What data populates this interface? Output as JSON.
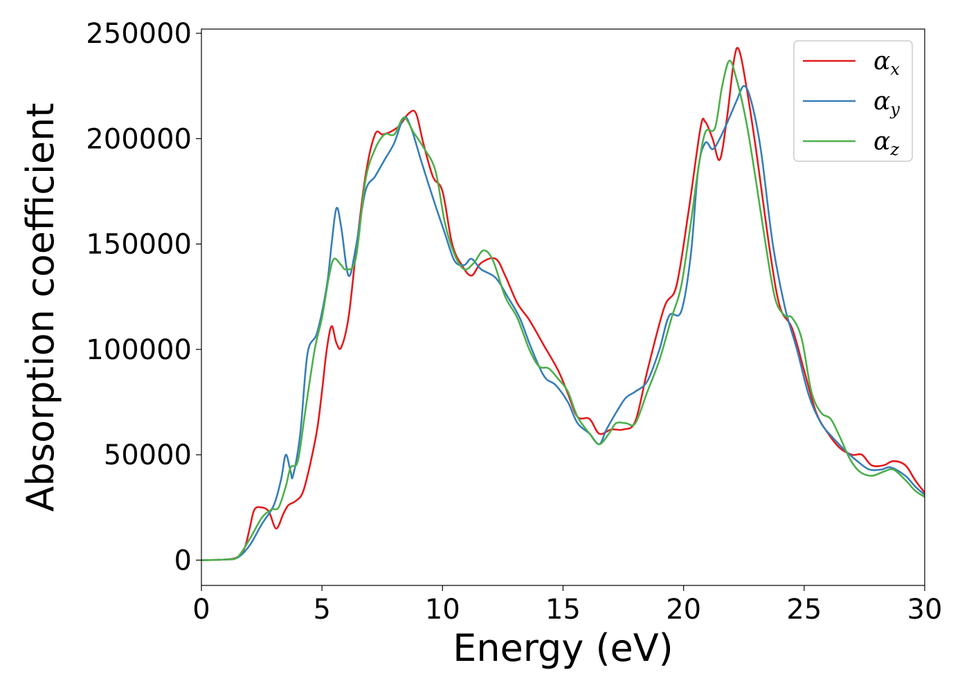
{
  "chart_data": {
    "type": "line",
    "title": "",
    "xlabel": "Energy (eV)",
    "ylabel": "Absorption coefficient",
    "xlim": [
      0,
      30
    ],
    "ylim": [
      -12000,
      252000
    ],
    "xticks": [
      0,
      5,
      10,
      15,
      20,
      25,
      30
    ],
    "yticks": [
      0,
      50000,
      100000,
      150000,
      200000,
      250000
    ],
    "grid": false,
    "legend_position": "top-right",
    "series": [
      {
        "name": "x",
        "legend_symbol": "α",
        "legend_subscript": "x",
        "color": "#e41a1c",
        "points": [
          [
            0,
            0
          ],
          [
            1,
            300
          ],
          [
            1.5,
            1500
          ],
          [
            1.8,
            6000
          ],
          [
            2,
            15000
          ],
          [
            2.2,
            24000
          ],
          [
            2.5,
            25000
          ],
          [
            2.8,
            23000
          ],
          [
            3.1,
            15000
          ],
          [
            3.4,
            22000
          ],
          [
            3.6,
            26000
          ],
          [
            3.9,
            28000
          ],
          [
            4.2,
            32000
          ],
          [
            4.5,
            45000
          ],
          [
            4.8,
            62000
          ],
          [
            5.0,
            80000
          ],
          [
            5.2,
            100000
          ],
          [
            5.4,
            111000
          ],
          [
            5.6,
            103000
          ],
          [
            5.8,
            101000
          ],
          [
            6.1,
            115000
          ],
          [
            6.4,
            145000
          ],
          [
            6.8,
            182000
          ],
          [
            7.2,
            202000
          ],
          [
            7.5,
            202000
          ],
          [
            7.8,
            203000
          ],
          [
            8.2,
            206000
          ],
          [
            8.6,
            212000
          ],
          [
            8.9,
            212000
          ],
          [
            9.2,
            198000
          ],
          [
            9.6,
            182000
          ],
          [
            10,
            175000
          ],
          [
            10.4,
            150000
          ],
          [
            10.8,
            140000
          ],
          [
            11.2,
            135000
          ],
          [
            11.6,
            141000
          ],
          [
            12.2,
            143000
          ],
          [
            12.6,
            135000
          ],
          [
            13.1,
            122000
          ],
          [
            13.6,
            114000
          ],
          [
            14.2,
            102000
          ],
          [
            14.8,
            90000
          ],
          [
            15.2,
            79000
          ],
          [
            15.6,
            68000
          ],
          [
            16.1,
            67000
          ],
          [
            16.5,
            60000
          ],
          [
            17,
            62000
          ],
          [
            17.5,
            62000
          ],
          [
            18,
            66000
          ],
          [
            18.5,
            90000
          ],
          [
            19.2,
            120000
          ],
          [
            19.7,
            130000
          ],
          [
            20.2,
            165000
          ],
          [
            20.7,
            205000
          ],
          [
            20.9,
            208000
          ],
          [
            21.2,
            200000
          ],
          [
            21.5,
            190000
          ],
          [
            21.8,
            210000
          ],
          [
            22.1,
            238000
          ],
          [
            22.3,
            242000
          ],
          [
            22.6,
            225000
          ],
          [
            23,
            195000
          ],
          [
            23.6,
            145000
          ],
          [
            24,
            120000
          ],
          [
            24.5,
            110000
          ],
          [
            25,
            90000
          ],
          [
            25.5,
            70000
          ],
          [
            26,
            60000
          ],
          [
            26.5,
            53000
          ],
          [
            27,
            50000
          ],
          [
            27.4,
            50000
          ],
          [
            27.8,
            45000
          ],
          [
            28.3,
            45000
          ],
          [
            28.7,
            47000
          ],
          [
            29.2,
            45000
          ],
          [
            29.6,
            38000
          ],
          [
            30,
            32000
          ]
        ]
      },
      {
        "name": "y",
        "legend_symbol": "α",
        "legend_subscript": "y",
        "color": "#377eb8",
        "points": [
          [
            0,
            0
          ],
          [
            1,
            300
          ],
          [
            1.5,
            1200
          ],
          [
            2,
            7000
          ],
          [
            2.5,
            17000
          ],
          [
            3,
            26000
          ],
          [
            3.3,
            38000
          ],
          [
            3.5,
            50000
          ],
          [
            3.7,
            42000
          ],
          [
            3.8,
            40000
          ],
          [
            4.1,
            60000
          ],
          [
            4.4,
            98000
          ],
          [
            4.8,
            108000
          ],
          [
            5.2,
            130000
          ],
          [
            5.4,
            150000
          ],
          [
            5.6,
            167000
          ],
          [
            5.8,
            158000
          ],
          [
            6.1,
            135000
          ],
          [
            6.4,
            148000
          ],
          [
            6.8,
            175000
          ],
          [
            7.2,
            182000
          ],
          [
            7.6,
            190000
          ],
          [
            8.0,
            198000
          ],
          [
            8.4,
            210000
          ],
          [
            8.7,
            205000
          ],
          [
            9.1,
            190000
          ],
          [
            9.6,
            172000
          ],
          [
            10.1,
            155000
          ],
          [
            10.5,
            142000
          ],
          [
            10.9,
            140000
          ],
          [
            11.2,
            143000
          ],
          [
            11.6,
            138000
          ],
          [
            12.2,
            134000
          ],
          [
            12.7,
            125000
          ],
          [
            13.2,
            115000
          ],
          [
            13.6,
            103000
          ],
          [
            14.0,
            92000
          ],
          [
            14.3,
            86000
          ],
          [
            14.7,
            83000
          ],
          [
            15.2,
            75000
          ],
          [
            15.6,
            65000
          ],
          [
            16.1,
            60000
          ],
          [
            16.5,
            55000
          ],
          [
            16.8,
            62000
          ],
          [
            17.2,
            70000
          ],
          [
            17.6,
            77000
          ],
          [
            18.0,
            80000
          ],
          [
            18.5,
            85000
          ],
          [
            19.0,
            100000
          ],
          [
            19.4,
            116000
          ],
          [
            19.9,
            118000
          ],
          [
            20.3,
            145000
          ],
          [
            20.6,
            185000
          ],
          [
            20.9,
            198000
          ],
          [
            21.2,
            195000
          ],
          [
            21.5,
            200000
          ],
          [
            21.9,
            210000
          ],
          [
            22.2,
            218000
          ],
          [
            22.5,
            225000
          ],
          [
            22.8,
            218000
          ],
          [
            23.2,
            195000
          ],
          [
            23.7,
            150000
          ],
          [
            24.2,
            120000
          ],
          [
            24.7,
            100000
          ],
          [
            25.2,
            78000
          ],
          [
            25.7,
            65000
          ],
          [
            26.2,
            58000
          ],
          [
            26.7,
            52000
          ],
          [
            27.2,
            47000
          ],
          [
            27.7,
            43000
          ],
          [
            28.2,
            43000
          ],
          [
            28.6,
            44000
          ],
          [
            29.2,
            40000
          ],
          [
            29.6,
            35000
          ],
          [
            30,
            31000
          ]
        ]
      },
      {
        "name": "z",
        "legend_symbol": "α",
        "legend_subscript": "z",
        "color": "#4daf4a",
        "points": [
          [
            0,
            0
          ],
          [
            1,
            300
          ],
          [
            1.5,
            1500
          ],
          [
            2,
            10000
          ],
          [
            2.5,
            20000
          ],
          [
            2.9,
            24000
          ],
          [
            3.2,
            25000
          ],
          [
            3.5,
            35000
          ],
          [
            3.7,
            44000
          ],
          [
            4.0,
            47000
          ],
          [
            4.3,
            70000
          ],
          [
            4.7,
            100000
          ],
          [
            5.0,
            115000
          ],
          [
            5.3,
            135000
          ],
          [
            5.5,
            143000
          ],
          [
            5.8,
            140000
          ],
          [
            6.0,
            138000
          ],
          [
            6.4,
            143000
          ],
          [
            6.8,
            180000
          ],
          [
            7.2,
            195000
          ],
          [
            7.6,
            202000
          ],
          [
            8.0,
            202000
          ],
          [
            8.4,
            210000
          ],
          [
            8.8,
            203000
          ],
          [
            9.2,
            196000
          ],
          [
            9.7,
            185000
          ],
          [
            10.1,
            160000
          ],
          [
            10.5,
            145000
          ],
          [
            10.9,
            138000
          ],
          [
            11.3,
            141000
          ],
          [
            11.7,
            147000
          ],
          [
            12.1,
            142000
          ],
          [
            12.6,
            125000
          ],
          [
            13.1,
            115000
          ],
          [
            13.6,
            100000
          ],
          [
            14.0,
            92000
          ],
          [
            14.4,
            91000
          ],
          [
            14.8,
            86000
          ],
          [
            15.2,
            80000
          ],
          [
            15.6,
            68000
          ],
          [
            16.1,
            60000
          ],
          [
            16.5,
            55000
          ],
          [
            16.9,
            60000
          ],
          [
            17.2,
            65000
          ],
          [
            17.6,
            65000
          ],
          [
            18.0,
            65000
          ],
          [
            18.5,
            80000
          ],
          [
            19.0,
            95000
          ],
          [
            19.5,
            115000
          ],
          [
            19.9,
            130000
          ],
          [
            20.3,
            160000
          ],
          [
            20.6,
            185000
          ],
          [
            20.9,
            203000
          ],
          [
            21.3,
            205000
          ],
          [
            21.6,
            225000
          ],
          [
            21.9,
            237000
          ],
          [
            22.2,
            228000
          ],
          [
            22.6,
            208000
          ],
          [
            23.0,
            180000
          ],
          [
            23.4,
            150000
          ],
          [
            23.8,
            124000
          ],
          [
            24.2,
            116000
          ],
          [
            24.5,
            115000
          ],
          [
            24.9,
            105000
          ],
          [
            25.3,
            80000
          ],
          [
            25.7,
            70000
          ],
          [
            26.1,
            67000
          ],
          [
            26.5,
            58000
          ],
          [
            26.9,
            48000
          ],
          [
            27.3,
            42000
          ],
          [
            27.8,
            40000
          ],
          [
            28.3,
            42000
          ],
          [
            28.7,
            43000
          ],
          [
            29.2,
            38000
          ],
          [
            29.6,
            33000
          ],
          [
            30,
            30000
          ]
        ]
      }
    ]
  }
}
